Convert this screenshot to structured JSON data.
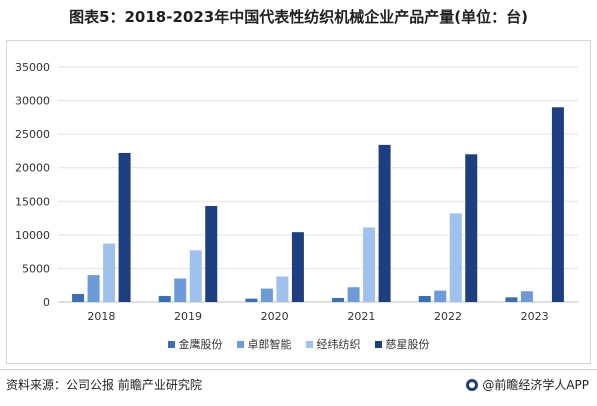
{
  "title": "图表5：2018-2023年中国代表性纺织机械企业产品产量(单位：台)",
  "source": "资料来源：公司公报 前瞻产业研究院",
  "brand": "@前瞻经济学人APP",
  "chart_data": {
    "type": "bar",
    "title": "图表5：2018-2023年中国代表性纺织机械企业产品产量(单位：台)",
    "categories": [
      "2018",
      "2019",
      "2020",
      "2021",
      "2022",
      "2023"
    ],
    "ylim": [
      0,
      35000
    ],
    "yticks": [
      0,
      5000,
      10000,
      15000,
      20000,
      25000,
      30000,
      35000
    ],
    "grid": true,
    "legend": "bottom",
    "series": [
      {
        "name": "金鹰股份",
        "color": "#3a6fb6",
        "values": [
          1200,
          900,
          500,
          600,
          900,
          700
        ]
      },
      {
        "name": "卓郎智能",
        "color": "#6d9ad8",
        "values": [
          4000,
          3500,
          2000,
          2200,
          1700,
          1600
        ]
      },
      {
        "name": "经纬纺织",
        "color": "#9fc1ec",
        "values": [
          8700,
          7700,
          3800,
          11100,
          13200,
          0
        ]
      },
      {
        "name": "慈星股份",
        "color": "#1d3f7f",
        "values": [
          22200,
          14300,
          10400,
          23400,
          22000,
          29000
        ]
      }
    ]
  }
}
